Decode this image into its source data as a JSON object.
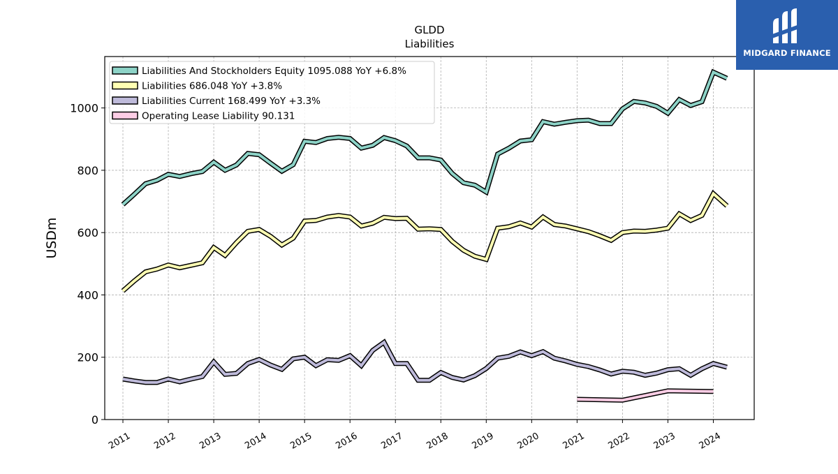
{
  "chart_data": {
    "type": "line",
    "title": "GLDD",
    "subtitle": "Liabilities",
    "ylabel": "USDm",
    "xlabel": "",
    "ylim": [
      0,
      1165
    ],
    "xlim": [
      2010.6,
      2024.9
    ],
    "yticks": [
      0,
      200,
      400,
      600,
      800,
      1000
    ],
    "xticks": [
      "2011",
      "2012",
      "2013",
      "2014",
      "2015",
      "2016",
      "2017",
      "2018",
      "2019",
      "2020",
      "2021",
      "2022",
      "2023",
      "2024"
    ],
    "grid": true,
    "legend_position": "top-left",
    "series": [
      {
        "name": "Liabilities And Stockholders Equity  1095.088 YoY +6.8%",
        "color": "#8dd3c7",
        "x": [
          2011.0,
          2011.25,
          2011.5,
          2011.75,
          2012.0,
          2012.25,
          2012.5,
          2012.75,
          2013.0,
          2013.25,
          2013.5,
          2013.75,
          2014.0,
          2014.25,
          2014.5,
          2014.75,
          2015.0,
          2015.25,
          2015.5,
          2015.75,
          2016.0,
          2016.25,
          2016.5,
          2016.75,
          2017.0,
          2017.25,
          2017.5,
          2017.75,
          2018.0,
          2018.25,
          2018.5,
          2018.75,
          2019.0,
          2019.25,
          2019.5,
          2019.75,
          2020.0,
          2020.25,
          2020.5,
          2020.75,
          2021.0,
          2021.25,
          2021.5,
          2021.75,
          2022.0,
          2022.25,
          2022.5,
          2022.75,
          2023.0,
          2023.25,
          2023.5,
          2023.75,
          2024.0,
          2024.3
        ],
        "y": [
          690,
          723,
          757,
          768,
          787,
          780,
          789,
          796,
          826,
          800,
          817,
          854,
          850,
          823,
          797,
          818,
          893,
          889,
          902,
          906,
          902,
          871,
          880,
          905,
          895,
          878,
          840,
          840,
          833,
          790,
          760,
          752,
          730,
          852,
          871,
          894,
          898,
          956,
          948,
          954,
          959,
          961,
          950,
          950,
          997,
          1021,
          1016,
          1005,
          983,
          1027,
          1008,
          1020,
          1115,
          1095
        ]
      },
      {
        "name": "Liabilities  686.048 YoY +3.8%",
        "color": "#ffffb3",
        "x": [
          2011.0,
          2011.25,
          2011.5,
          2011.75,
          2012.0,
          2012.25,
          2012.5,
          2012.75,
          2013.0,
          2013.25,
          2013.5,
          2013.75,
          2014.0,
          2014.25,
          2014.5,
          2014.75,
          2015.0,
          2015.25,
          2015.5,
          2015.75,
          2016.0,
          2016.25,
          2016.5,
          2016.75,
          2017.0,
          2017.25,
          2017.5,
          2017.75,
          2018.0,
          2018.25,
          2018.5,
          2018.75,
          2019.0,
          2019.25,
          2019.5,
          2019.75,
          2020.0,
          2020.25,
          2020.5,
          2020.75,
          2021.0,
          2021.25,
          2021.5,
          2021.75,
          2022.0,
          2022.25,
          2022.5,
          2022.75,
          2023.0,
          2023.25,
          2023.5,
          2023.75,
          2024.0,
          2024.3
        ],
        "y": [
          413,
          445,
          474,
          483,
          496,
          487,
          495,
          503,
          552,
          527,
          568,
          604,
          610,
          588,
          560,
          582,
          637,
          639,
          650,
          655,
          650,
          621,
          630,
          649,
          645,
          646,
          611,
          612,
          610,
          572,
          543,
          524,
          514,
          614,
          619,
          631,
          618,
          650,
          626,
          621,
          612,
          603,
          590,
          575,
          600,
          605,
          604,
          608,
          614,
          660,
          639,
          655,
          725,
          686
        ]
      },
      {
        "name": "Liabilities Current  168.499 YoY +3.3%",
        "color": "#bebada",
        "x": [
          2011.0,
          2011.25,
          2011.5,
          2011.75,
          2012.0,
          2012.25,
          2012.5,
          2012.75,
          2013.0,
          2013.25,
          2013.5,
          2013.75,
          2014.0,
          2014.25,
          2014.5,
          2014.75,
          2015.0,
          2015.25,
          2015.5,
          2015.75,
          2016.0,
          2016.25,
          2016.5,
          2016.75,
          2017.0,
          2017.25,
          2017.5,
          2017.75,
          2018.0,
          2018.25,
          2018.5,
          2018.75,
          2019.0,
          2019.25,
          2019.5,
          2019.75,
          2020.0,
          2020.25,
          2020.5,
          2020.75,
          2021.0,
          2021.25,
          2021.5,
          2021.75,
          2022.0,
          2022.25,
          2022.5,
          2022.75,
          2023.0,
          2023.25,
          2023.5,
          2023.75,
          2024.0,
          2024.3
        ],
        "y": [
          130,
          124,
          119,
          119,
          130,
          121,
          130,
          138,
          185,
          145,
          148,
          180,
          193,
          175,
          161,
          195,
          200,
          173,
          192,
          190,
          205,
          173,
          222,
          248,
          180,
          180,
          126,
          126,
          151,
          135,
          127,
          141,
          164,
          197,
          203,
          217,
          205,
          218,
          197,
          188,
          177,
          170,
          159,
          146,
          155,
          152,
          142,
          149,
          160,
          163,
          142,
          163,
          180,
          168
        ]
      },
      {
        "name": "Operating Lease Liability  90.131",
        "color": "#fccde5",
        "x": [
          2021.0,
          2022.0,
          2023.0,
          2024.0
        ],
        "y": [
          65,
          62,
          92,
          90
        ]
      }
    ]
  },
  "watermark": {
    "text": "MIDGARD FINANCE",
    "background": "#2a5fae"
  }
}
